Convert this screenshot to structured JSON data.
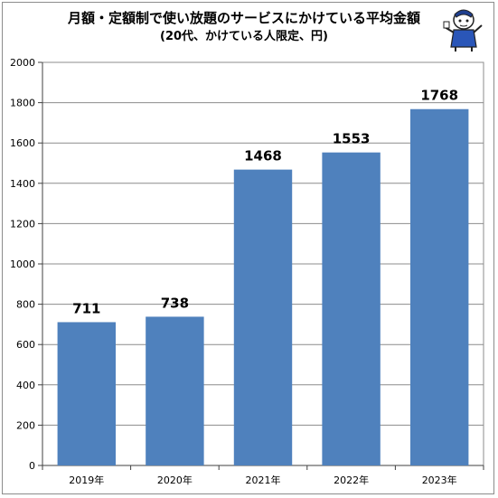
{
  "title": "月額・定額制で使い放題のサービスにかけている平均金額",
  "subtitle": "(20代、かけている人限定、円)",
  "mascot_icon": "character-mascot-icon",
  "colors": {
    "bar": "#4f81bd",
    "grid": "#8c8c8c",
    "axis": "#404040",
    "frame": "#8c8c8c"
  },
  "chart_data": {
    "type": "bar",
    "categories": [
      "2019年",
      "2020年",
      "2021年",
      "2022年",
      "2023年"
    ],
    "values": [
      711,
      738,
      1468,
      1553,
      1768
    ],
    "data_labels": [
      "711",
      "738",
      "1468",
      "1553",
      "1768"
    ],
    "ylim": [
      0,
      2000
    ],
    "yticks": [
      0,
      200,
      400,
      600,
      800,
      1000,
      1200,
      1400,
      1600,
      1800,
      2000
    ],
    "grid": true,
    "legend": "none"
  }
}
